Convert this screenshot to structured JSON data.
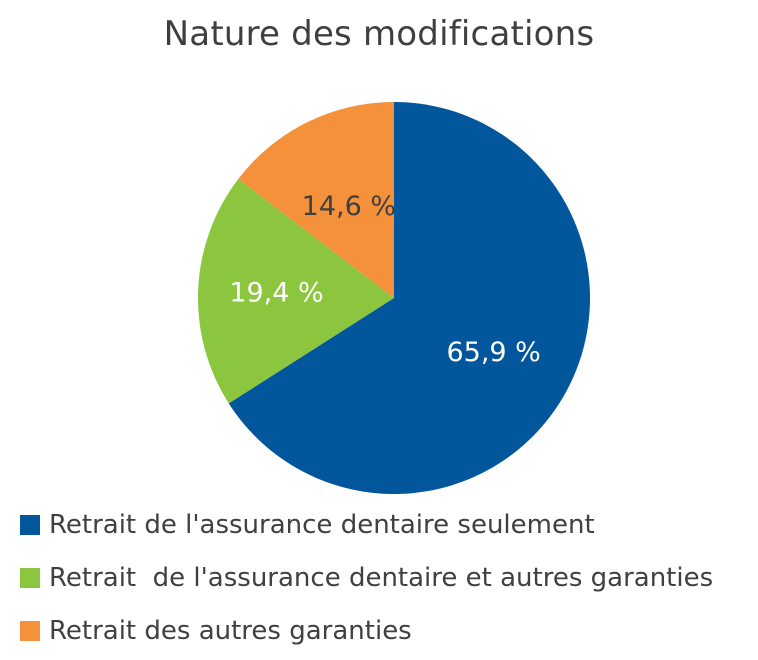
{
  "chart_data": {
    "type": "pie",
    "title": "Nature des modifications",
    "categories": [
      "Retrait de l'assurance dentaire seulement",
      "Retrait  de l'assurance dentaire et autres garanties",
      "Retrait des autres garanties"
    ],
    "values": [
      65.9,
      19.4,
      14.6
    ],
    "data_labels": [
      "65,9 %",
      "19,4 %",
      "14,6 %"
    ],
    "colors": [
      "#02569b",
      "#8cc63f",
      "#f4913a"
    ],
    "label_colors": [
      "#ffffff",
      "#ffffff",
      "#404040"
    ],
    "start_angle_deg": 0,
    "direction": "clockwise",
    "legend_position": "bottom"
  }
}
